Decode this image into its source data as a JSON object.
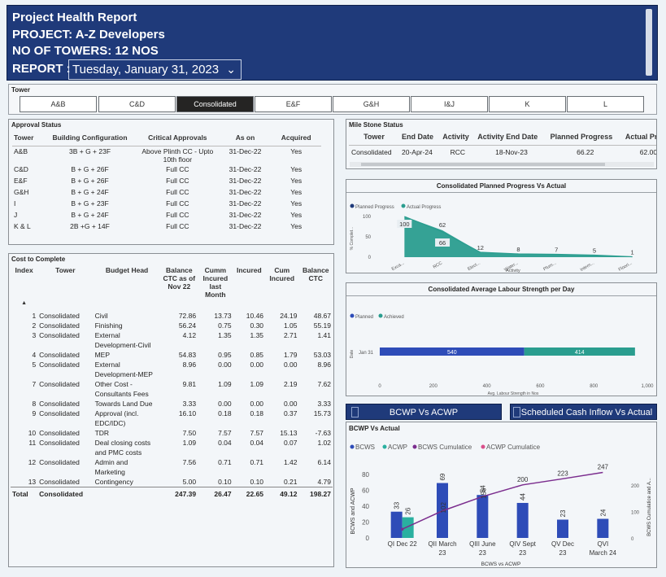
{
  "header": {
    "title": "Project Health Report",
    "project": "PROJECT: A-Z Developers",
    "towers": "NO OF TOWERS: 12 NOS",
    "report_label": "REPORT :",
    "report_date": "Tuesday, January 31, 2023"
  },
  "tower_slicer": {
    "label": "Tower",
    "options": [
      "A&B",
      "C&D",
      "Consolidated",
      "E&F",
      "G&H",
      "I&J",
      "K",
      "L"
    ],
    "selected": "Consolidated"
  },
  "approval": {
    "title": "Approval Status",
    "columns": [
      "Tower",
      "Building Configuration",
      "Critical Approvals",
      "As on",
      "Acquired"
    ],
    "rows": [
      [
        "A&B",
        "3B + G + 23F",
        "Above Plinth CC - Upto 10th floor",
        "31-Dec-22",
        "Yes"
      ],
      [
        "C&D",
        "B + G + 26F",
        "Full CC",
        "31-Dec-22",
        "Yes"
      ],
      [
        "E&F",
        "B + G + 26F",
        "Full CC",
        "31-Dec-22",
        "Yes"
      ],
      [
        "G&H",
        "B + G + 24F",
        "Full CC",
        "31-Dec-22",
        "Yes"
      ],
      [
        "I",
        "B + G + 23F",
        "Full CC",
        "31-Dec-22",
        "Yes"
      ],
      [
        "J",
        "B + G + 24F",
        "Full CC",
        "31-Dec-22",
        "Yes"
      ],
      [
        "K & L",
        "2B +G + 14F",
        "Full CC",
        "31-Dec-22",
        "Yes"
      ]
    ]
  },
  "cost": {
    "title": "Cost to Complete",
    "columns": [
      "Index",
      "Tower",
      "Budget Head",
      "Balance CTC as of Nov 22",
      "Cumm Incured last Month",
      "Incured",
      "Cum Incured",
      "Balance CTC"
    ],
    "rows": [
      [
        "1",
        "Consolidated",
        "Civil",
        "72.86",
        "13.73",
        "10.46",
        "24.19",
        "48.67"
      ],
      [
        "2",
        "Consolidated",
        "Finishing",
        "56.24",
        "0.75",
        "0.30",
        "1.05",
        "55.19"
      ],
      [
        "3",
        "Consolidated",
        "External Development-Civil",
        "4.12",
        "1.35",
        "1.35",
        "2.71",
        "1.41"
      ],
      [
        "4",
        "Consolidated",
        "MEP",
        "54.83",
        "0.95",
        "0.85",
        "1.79",
        "53.03"
      ],
      [
        "5",
        "Consolidated",
        "External Development-MEP",
        "8.96",
        "0.00",
        "0.00",
        "0.00",
        "8.96"
      ],
      [
        "7",
        "Consolidated",
        "Other Cost - Consultants Fees",
        "9.81",
        "1.09",
        "1.09",
        "2.19",
        "7.62"
      ],
      [
        "8",
        "Consolidated",
        "Towards Land Due",
        "3.33",
        "0.00",
        "0.00",
        "0.00",
        "3.33"
      ],
      [
        "9",
        "Consolidated",
        "Approval (incl. EDC/IDC)",
        "16.10",
        "0.18",
        "0.18",
        "0.37",
        "15.73"
      ],
      [
        "10",
        "Consolidated",
        "TDR",
        "7.50",
        "7.57",
        "7.57",
        "15.13",
        "-7.63"
      ],
      [
        "11",
        "Consolidated",
        "Deal closing costs and PMC costs",
        "1.09",
        "0.04",
        "0.04",
        "0.07",
        "1.02"
      ],
      [
        "12",
        "Consolidated",
        "Admin and Marketing",
        "7.56",
        "0.71",
        "0.71",
        "1.42",
        "6.14"
      ],
      [
        "13",
        "Consolidated",
        "Contingency",
        "5.00",
        "0.10",
        "0.10",
        "0.21",
        "4.79"
      ]
    ],
    "total": [
      "Total",
      "Consolidated",
      "",
      "247.39",
      "26.47",
      "22.65",
      "49.12",
      "198.27"
    ]
  },
  "milestone": {
    "title": "Mile Stone Status",
    "columns": [
      "Tower",
      "End Date",
      "Activity",
      "Activity End Date",
      "Planned Progress",
      "Actual Prog"
    ],
    "row": [
      "Consolidated",
      "20-Apr-24",
      "RCC",
      "18-Nov-23",
      "66.22",
      "62.00"
    ]
  },
  "planned_chart": {
    "title": "Consolidated Planned Progress Vs Actual",
    "legend": [
      "Planned Progress",
      "Actual Progress"
    ],
    "ylabel": "% Complet...",
    "xlabel": "Activity",
    "yticks": [
      "100",
      "50",
      "0"
    ],
    "categories": [
      "Exca...",
      "RCC",
      "Elect...",
      "Water...",
      "Plum...",
      "Intern...",
      "Floori..."
    ],
    "colors": {
      "planned": "#1f3a7a",
      "actual": "#2a9d8f"
    }
  },
  "labour_chart": {
    "title": "Consolidated Average Labour Strength per Day",
    "legend": [
      "Planned",
      "Achieved"
    ],
    "ylabel": "Date",
    "category": "Jan 31",
    "xticks": [
      "0",
      "200",
      "400",
      "600",
      "800",
      "1,000"
    ],
    "xlabel": "Avg. Labour Strength in Nos",
    "colors": {
      "planned": "#2e4cb8",
      "achieved": "#2a9d8f"
    }
  },
  "tabs": {
    "bcwp": "BCWP Vs ACWP",
    "cash": "Scheduled Cash Inflow Vs Actual"
  },
  "bcwp_chart": {
    "title": "BCWP Vs Actual",
    "legend": [
      "BCWS",
      "ACWP",
      "BCWS Cumulatice",
      "ACWP Cumulatice"
    ],
    "ylabel_left": "BCWS and ACWP",
    "ylabel_right": "BCWS Cumulatice and A...",
    "xlabel": "BCWS vs ACWP",
    "yticks_left": [
      "80",
      "60",
      "40",
      "20",
      "0"
    ],
    "yticks_right": [
      "200",
      "100",
      "0"
    ],
    "categories": [
      [
        "QI Dec 22"
      ],
      [
        "QII March",
        "23"
      ],
      [
        "QIII June",
        "23"
      ],
      [
        "QIV Sept",
        "23"
      ],
      [
        "QV Dec",
        "23"
      ],
      [
        "QVI",
        "March 24"
      ]
    ],
    "colors": {
      "bcws": "#2e4cb8",
      "acwp": "#2ab0a0",
      "bcws_cum": "#7b2d8e",
      "acwp_cum": "#d94f8a"
    }
  },
  "chart_data": [
    {
      "type": "area",
      "title": "Consolidated Planned Progress Vs Actual",
      "xlabel": "Activity",
      "ylabel": "% Complet...",
      "categories": [
        "Exca...",
        "RCC",
        "Elect...",
        "Water...",
        "Plum...",
        "Intern...",
        "Floori..."
      ],
      "series": [
        {
          "name": "Planned Progress",
          "values": [
            100,
            66,
            12,
            8,
            7,
            5,
            1
          ]
        },
        {
          "name": "Actual Progress",
          "values": [
            100,
            62,
            12,
            8,
            7,
            5,
            1
          ]
        }
      ],
      "labels": [
        "100",
        "62",
        "66",
        "12",
        "8",
        "7",
        "5",
        "1"
      ],
      "ylim": [
        0,
        100
      ]
    },
    {
      "type": "bar",
      "title": "Consolidated Average Labour Strength per Day",
      "xlabel": "Avg. Labour Strength in Nos",
      "ylabel": "Date",
      "categories": [
        "Jan 31"
      ],
      "series": [
        {
          "name": "Planned",
          "values": [
            540
          ]
        },
        {
          "name": "Achieved",
          "values": [
            414
          ]
        }
      ],
      "xlim": [
        0,
        1000
      ]
    },
    {
      "type": "bar",
      "title": "BCWP Vs Actual",
      "xlabel": "BCWS vs ACWP",
      "ylabel": "BCWS and ACWP",
      "categories": [
        "QI Dec 22",
        "QII March 23",
        "QIII June 23",
        "QIV Sept 23",
        "QV Dec 23",
        "QVI March 24"
      ],
      "series": [
        {
          "name": "BCWS",
          "values": [
            33,
            69,
            54,
            44,
            23,
            24
          ]
        },
        {
          "name": "ACWP",
          "values": [
            26,
            null,
            null,
            null,
            null,
            null
          ]
        },
        {
          "name": "BCWS Cumulatice",
          "values": [
            33,
            102,
            156,
            200,
            223,
            247
          ]
        }
      ],
      "ylim": [
        0,
        90
      ],
      "ylim_right": [
        0,
        270
      ]
    }
  ]
}
